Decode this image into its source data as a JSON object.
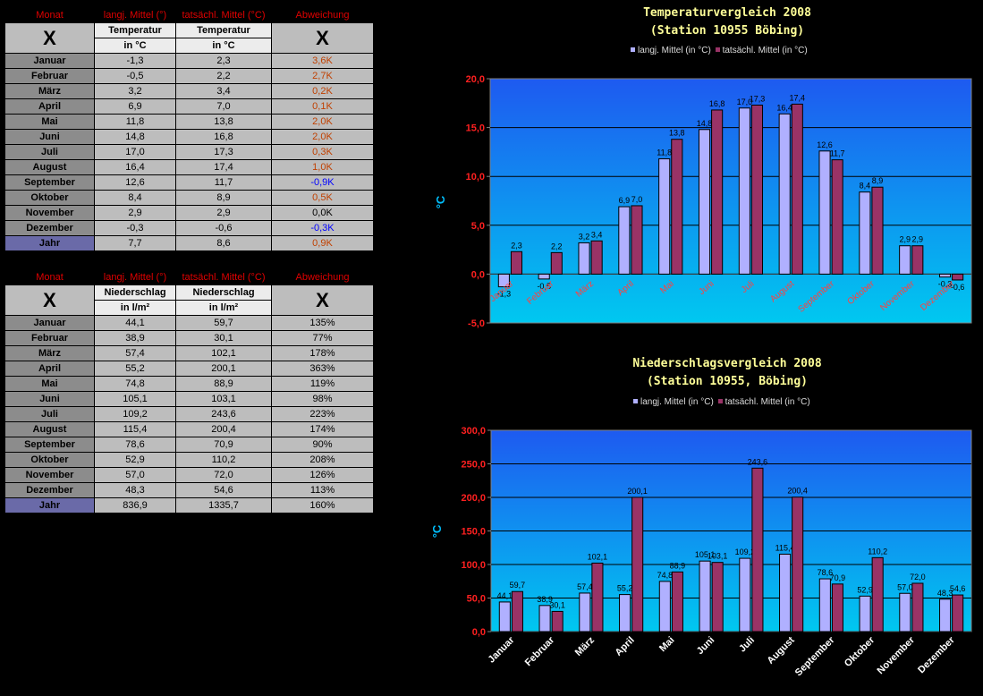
{
  "tables": [
    {
      "headers": [
        "Monat",
        "langj. Mittel (°)",
        "tatsächl. Mittel (°C)",
        "Abweichung"
      ],
      "x_mark": "X",
      "sub1": [
        "Temperatur",
        "Temperatur"
      ],
      "sub2": [
        "in °C",
        "in °C"
      ],
      "rows": [
        {
          "month": "Januar",
          "a": "-1,3",
          "b": "2,3",
          "dev": "3,6K",
          "tone": "p"
        },
        {
          "month": "Februar",
          "a": "-0,5",
          "b": "2,2",
          "dev": "2,7K",
          "tone": "p"
        },
        {
          "month": "März",
          "a": "3,2",
          "b": "3,4",
          "dev": "0,2K",
          "tone": "p"
        },
        {
          "month": "April",
          "a": "6,9",
          "b": "7,0",
          "dev": "0,1K",
          "tone": "p"
        },
        {
          "month": "Mai",
          "a": "11,8",
          "b": "13,8",
          "dev": "2,0K",
          "tone": "p"
        },
        {
          "month": "Juni",
          "a": "14,8",
          "b": "16,8",
          "dev": "2,0K",
          "tone": "p"
        },
        {
          "month": "Juli",
          "a": "17,0",
          "b": "17,3",
          "dev": "0,3K",
          "tone": "p"
        },
        {
          "month": "August",
          "a": "16,4",
          "b": "17,4",
          "dev": "1,0K",
          "tone": "p"
        },
        {
          "month": "September",
          "a": "12,6",
          "b": "11,7",
          "dev": "-0,9K",
          "tone": "n"
        },
        {
          "month": "Oktober",
          "a": "8,4",
          "b": "8,9",
          "dev": "0,5K",
          "tone": "p"
        },
        {
          "month": "November",
          "a": "2,9",
          "b": "2,9",
          "dev": "0,0K",
          "tone": "z"
        },
        {
          "month": "Dezember",
          "a": "-0,3",
          "b": "-0,6",
          "dev": "-0,3K",
          "tone": "n"
        }
      ],
      "total": {
        "month": "Jahr",
        "a": "7,7",
        "b": "8,6",
        "dev": "0,9K",
        "tone": "p"
      }
    },
    {
      "headers": [
        "Monat",
        "langj. Mittel (°)",
        "tatsächl. Mittel (°C)",
        "Abweichung"
      ],
      "x_mark": "X",
      "sub1": [
        "Niederschlag",
        "Niederschlag"
      ],
      "sub2": [
        "in l/m²",
        "in l/m²"
      ],
      "rows": [
        {
          "month": "Januar",
          "a": "44,1",
          "b": "59,7",
          "dev": "135%",
          "tone": "z"
        },
        {
          "month": "Februar",
          "a": "38,9",
          "b": "30,1",
          "dev": "77%",
          "tone": "z"
        },
        {
          "month": "März",
          "a": "57,4",
          "b": "102,1",
          "dev": "178%",
          "tone": "z"
        },
        {
          "month": "April",
          "a": "55,2",
          "b": "200,1",
          "dev": "363%",
          "tone": "z"
        },
        {
          "month": "Mai",
          "a": "74,8",
          "b": "88,9",
          "dev": "119%",
          "tone": "z"
        },
        {
          "month": "Juni",
          "a": "105,1",
          "b": "103,1",
          "dev": "98%",
          "tone": "z"
        },
        {
          "month": "Juli",
          "a": "109,2",
          "b": "243,6",
          "dev": "223%",
          "tone": "z"
        },
        {
          "month": "August",
          "a": "115,4",
          "b": "200,4",
          "dev": "174%",
          "tone": "z"
        },
        {
          "month": "September",
          "a": "78,6",
          "b": "70,9",
          "dev": "90%",
          "tone": "z"
        },
        {
          "month": "Oktober",
          "a": "52,9",
          "b": "110,2",
          "dev": "208%",
          "tone": "z"
        },
        {
          "month": "November",
          "a": "57,0",
          "b": "72,0",
          "dev": "126%",
          "tone": "z"
        },
        {
          "month": "Dezember",
          "a": "48,3",
          "b": "54,6",
          "dev": "113%",
          "tone": "z"
        }
      ],
      "total": {
        "month": "Jahr",
        "a": "836,9",
        "b": "1335,7",
        "dev": "160%",
        "tone": "z"
      }
    }
  ],
  "colors": {
    "series_a": "#b0b0ff",
    "series_b": "#993366",
    "plot_top": "#1e5af0",
    "plot_bottom": "#00c8f0",
    "title": "#ffff99",
    "header_red": "#e00000"
  },
  "chart_data": [
    {
      "type": "bar",
      "title": "Temperaturvergleich 2008",
      "subtitle": "(Station 10955 Böbing)",
      "ylabel": "°C",
      "xlabel": "",
      "ylim": [
        -5,
        20
      ],
      "yticks": [
        "-5,0",
        "0,0",
        "5,0",
        "10,0",
        "15,0",
        "20,0"
      ],
      "grid": true,
      "legend": "top",
      "categories": [
        "Januar",
        "Februar",
        "März",
        "April",
        "Mai",
        "Juni",
        "Juli",
        "August",
        "September",
        "Oktober",
        "November",
        "Dezember"
      ],
      "series": [
        {
          "name": "langj. Mittel (in °C)",
          "values": [
            -1.3,
            -0.5,
            3.2,
            6.9,
            11.8,
            14.8,
            17.0,
            16.4,
            12.6,
            8.4,
            2.9,
            -0.3
          ],
          "labels": [
            "-1,3",
            "-0,5",
            "3,2",
            "6,9",
            "11,8",
            "14,8",
            "17,0",
            "16,4",
            "12,6",
            "8,4",
            "2,9",
            "-0,3"
          ]
        },
        {
          "name": "tatsächl. Mittel (in °C)",
          "values": [
            2.3,
            2.2,
            3.4,
            7.0,
            13.8,
            16.8,
            17.3,
            17.4,
            11.7,
            8.9,
            2.9,
            -0.6
          ],
          "labels": [
            "2,3",
            "2,2",
            "3,4",
            "7,0",
            "13,8",
            "16,8",
            "17,3",
            "17,4",
            "11,7",
            "8,9",
            "2,9",
            "-0,6"
          ]
        }
      ]
    },
    {
      "type": "bar",
      "title": "Niederschlagsvergleich 2008",
      "subtitle": "(Station 10955, Böbing)",
      "ylabel": "°C",
      "xlabel": "",
      "ylim": [
        0,
        300
      ],
      "yticks": [
        "0,0",
        "50,0",
        "100,0",
        "150,0",
        "200,0",
        "250,0",
        "300,0"
      ],
      "grid": true,
      "legend": "top",
      "categories": [
        "Januar",
        "Februar",
        "März",
        "April",
        "Mai",
        "Juni",
        "Juli",
        "August",
        "September",
        "Oktober",
        "November",
        "Dezember"
      ],
      "series": [
        {
          "name": "langj. Mittel (in °C)",
          "values": [
            44.1,
            38.9,
            57.4,
            55.2,
            74.8,
            105.1,
            109.2,
            115.4,
            78.6,
            52.9,
            57.0,
            48.3
          ],
          "labels": [
            "44,1",
            "38,9",
            "57,4",
            "55,2",
            "74,8",
            "105,1",
            "109,2",
            "115,4",
            "78,6",
            "52,9",
            "57,0",
            "48,3"
          ]
        },
        {
          "name": "tatsächl. Mittel (in °C)",
          "values": [
            59.7,
            30.1,
            102.1,
            200.1,
            88.9,
            103.1,
            243.6,
            200.4,
            70.9,
            110.2,
            72.0,
            54.6
          ],
          "labels": [
            "59,7",
            "30,1",
            "102,1",
            "200,1",
            "88,9",
            "103,1",
            "243,6",
            "200,4",
            "70,9",
            "110,2",
            "72,0",
            "54,6"
          ]
        }
      ]
    }
  ]
}
